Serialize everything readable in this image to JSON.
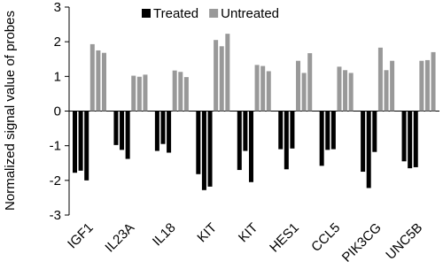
{
  "chart_data": {
    "type": "bar",
    "y_label": "Normalized signal value of probes",
    "categories": [
      "IGF1",
      "IL23A",
      "IL18",
      "KIT",
      "KIT",
      "HES1",
      "CCL5",
      "PIK3CG",
      "UNC5B"
    ],
    "series": [
      {
        "name": "Treated",
        "color": "#000000",
        "values": [
          [
            -1.78,
            -1.72,
            -2.0
          ],
          [
            -0.98,
            -1.12,
            -1.38
          ],
          [
            -1.15,
            -0.95,
            -1.2
          ],
          [
            -1.82,
            -2.28,
            -2.18
          ],
          [
            -1.7,
            -1.15,
            -2.05
          ],
          [
            -1.1,
            -1.68,
            -1.08
          ],
          [
            -1.58,
            -1.12,
            -1.1
          ],
          [
            -1.75,
            -2.22,
            -1.18
          ],
          [
            -1.45,
            -1.65,
            -1.62
          ]
        ]
      },
      {
        "name": "Untreated",
        "color": "#999999",
        "values": [
          [
            1.93,
            1.75,
            1.68
          ],
          [
            1.02,
            0.99,
            1.05
          ],
          [
            1.17,
            1.13,
            0.98
          ],
          [
            2.05,
            1.87,
            2.23
          ],
          [
            1.33,
            1.3,
            1.15
          ],
          [
            1.45,
            1.1,
            1.67
          ],
          [
            1.28,
            1.18,
            1.1
          ],
          [
            1.83,
            1.18,
            1.45
          ],
          [
            1.45,
            1.47,
            1.7
          ]
        ]
      }
    ],
    "ylim": [
      -3,
      3
    ],
    "yticks": [
      -3,
      -2,
      -1,
      0,
      1,
      2,
      3
    ],
    "legend": "top"
  }
}
